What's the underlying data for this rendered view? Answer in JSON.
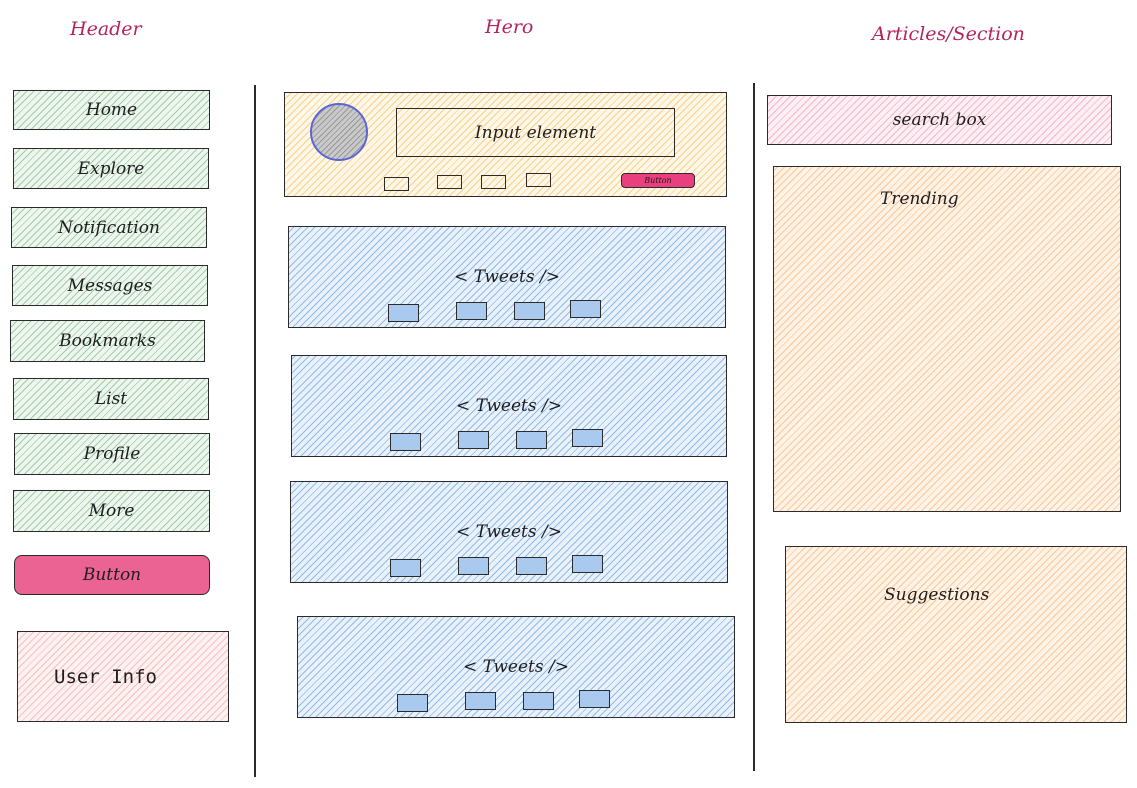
{
  "columns": {
    "header": "Header",
    "hero": "Hero",
    "articles": "Articles/Section"
  },
  "nav": {
    "items": [
      "Home",
      "Explore",
      "Notification",
      "Messages",
      "Bookmarks",
      "List",
      "Profile",
      "More"
    ],
    "button_label": "Button",
    "user_info": "User Info"
  },
  "compose": {
    "input_label": "Input element",
    "button_label": "Button"
  },
  "tweets": [
    "< Tweets />",
    "< Tweets />",
    "< Tweets />",
    "< Tweets />"
  ],
  "sidebar": {
    "search_label": "search box",
    "trending_label": "Trending",
    "suggestions_label": "Suggestions"
  },
  "colors": {
    "title": "#b3245f",
    "nav_fill": "#65a86e",
    "button_fill": "#ea6393",
    "compose_fill": "#f3b03e",
    "tweet_fill": "#4a8dd6",
    "search_fill": "#e986a8",
    "panel_fill": "#f7a05c"
  }
}
